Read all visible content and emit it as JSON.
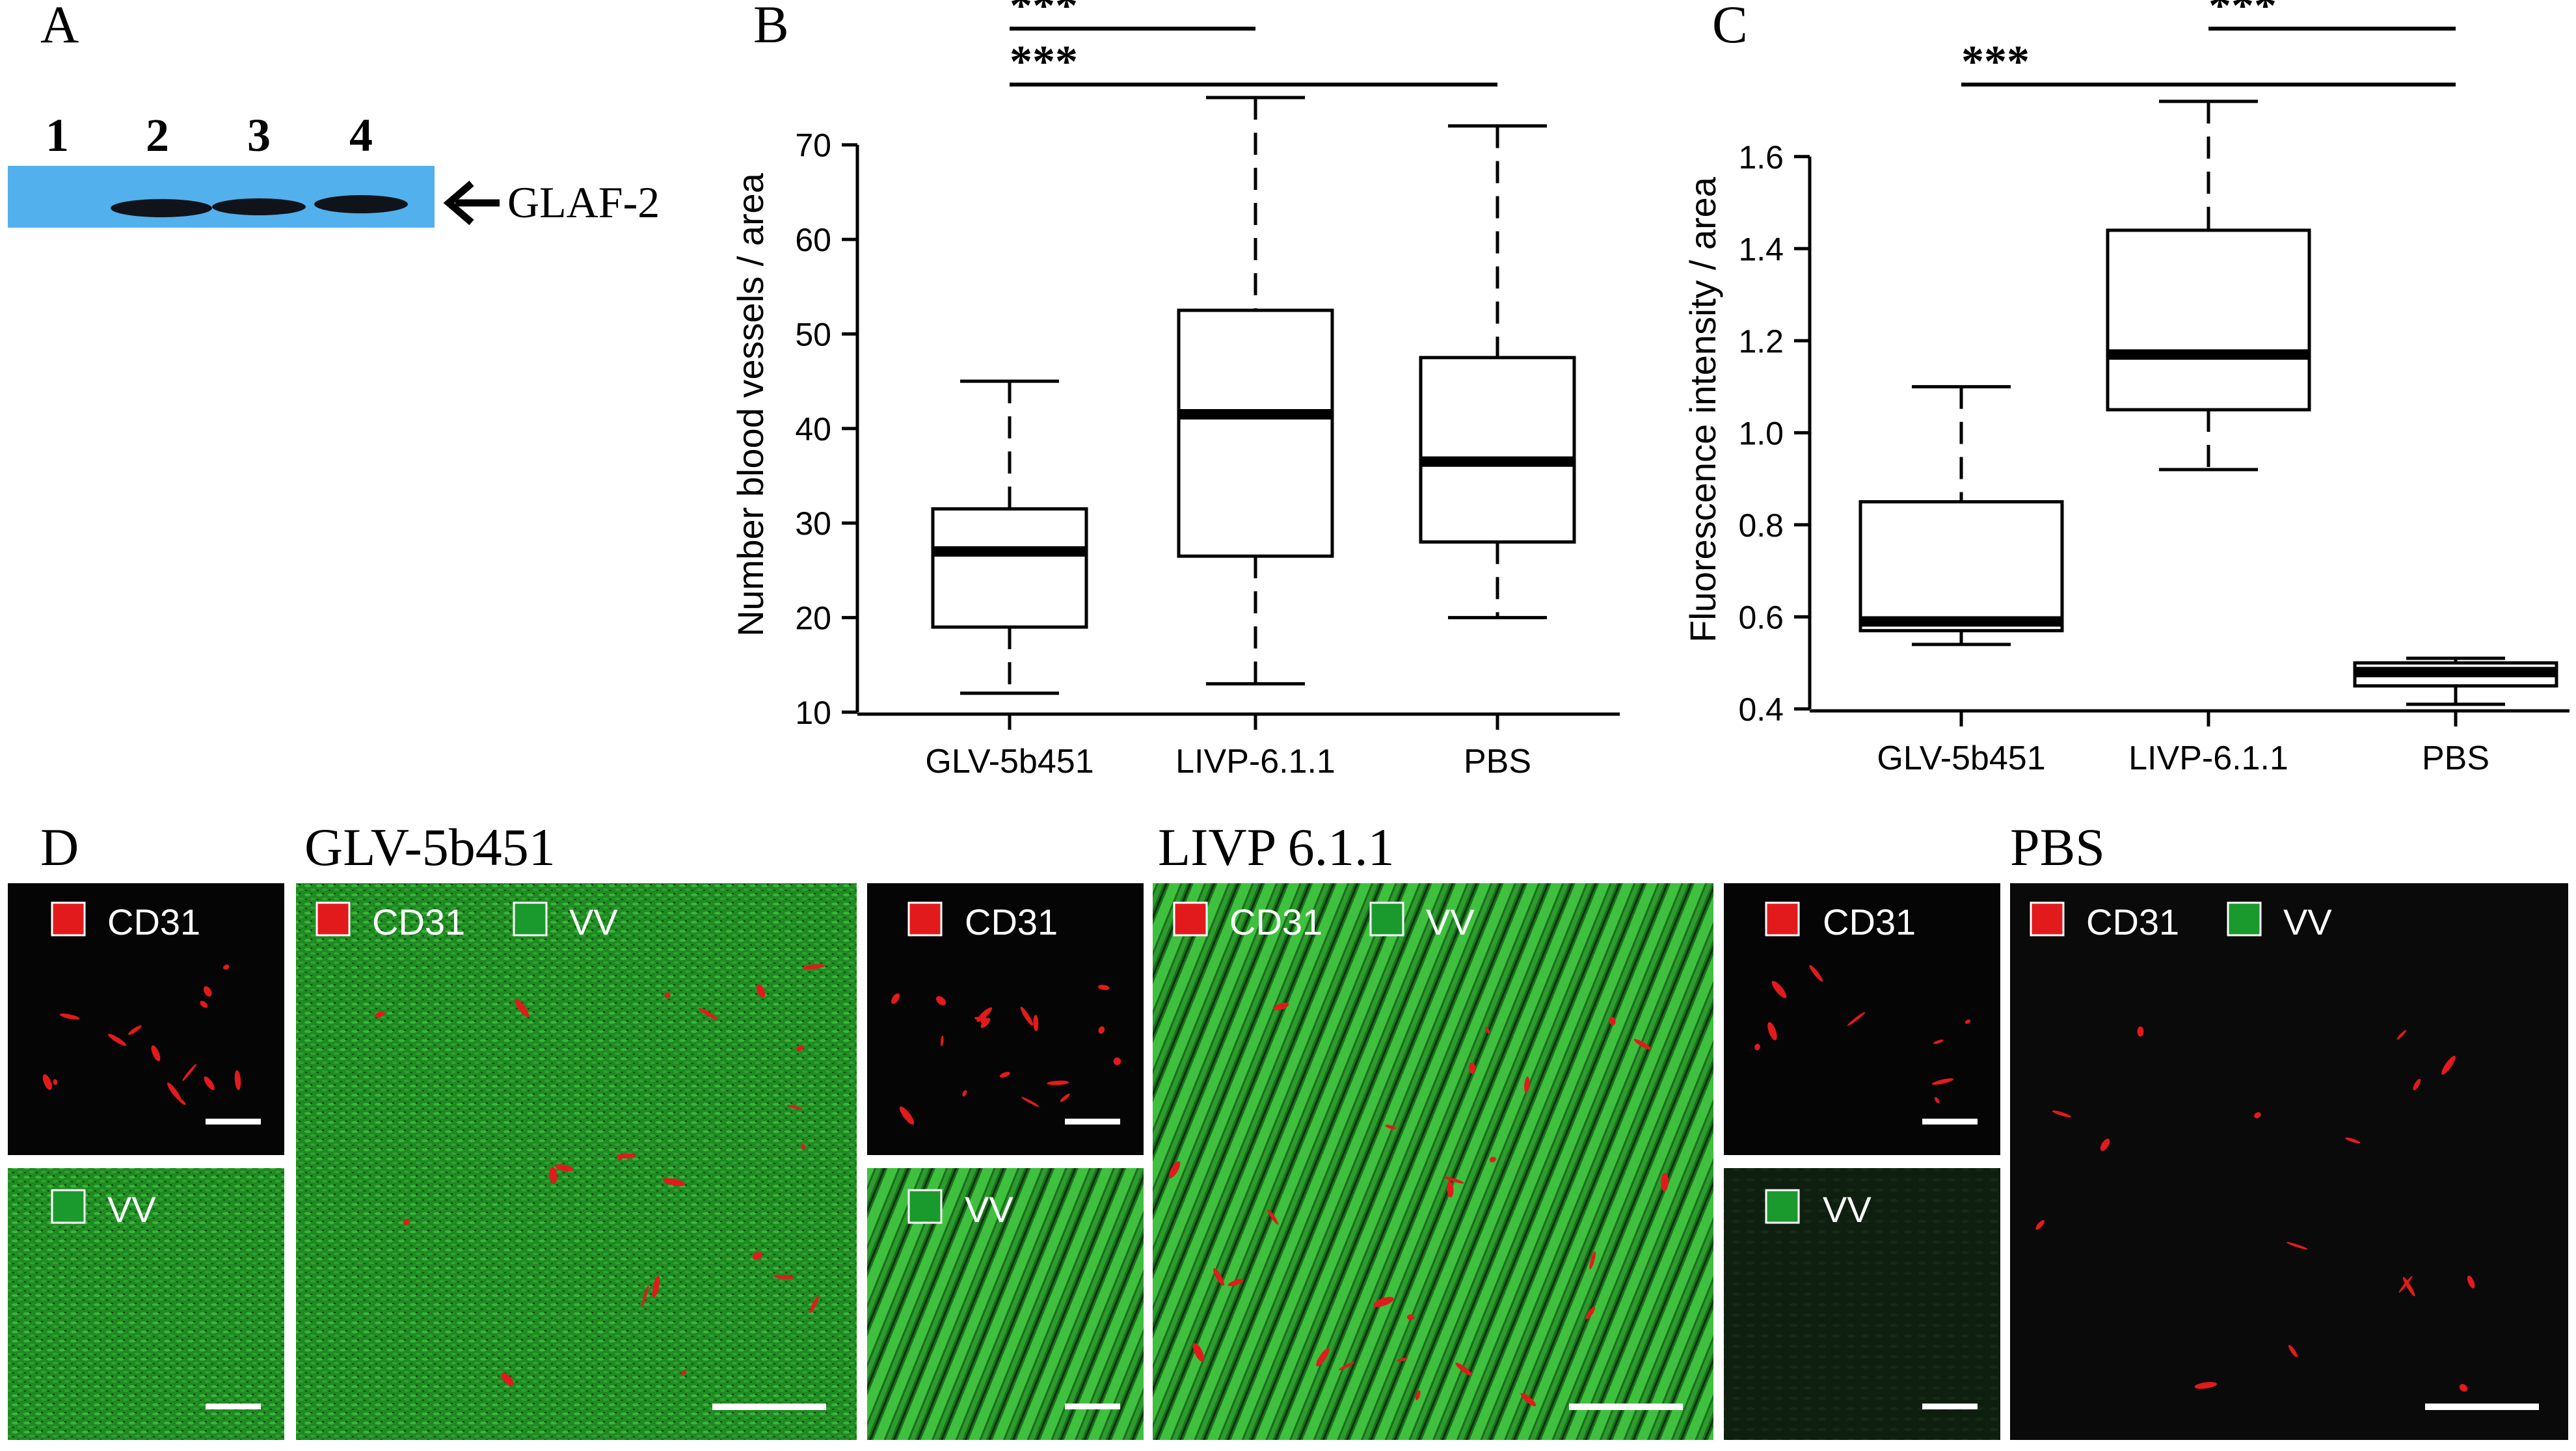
{
  "panels": {
    "A": {
      "letter": "A",
      "lanes": [
        "1",
        "2",
        "3",
        "4"
      ],
      "band_label": "GLAF-2",
      "blot_color": "#52b0ec",
      "band_color": "#10141a"
    },
    "B": {
      "letter": "B"
    },
    "C": {
      "letter": "C"
    },
    "D": {
      "letter": "D",
      "group_titles": [
        "GLV-5b451",
        "LIVP 6.1.1",
        "PBS"
      ],
      "channel_labels": {
        "cd31": "CD31",
        "vv": "VV"
      },
      "cd31_color": "#e31a1c",
      "vv_color": "#1a9a2c"
    }
  },
  "chart_data": [
    {
      "type": "box",
      "panel": "B",
      "categories": [
        "GLV-5b451",
        "LIVP-6.1.1",
        "PBS"
      ],
      "ylabel": "Number blood vessels / area",
      "xlabel": "",
      "ylim": [
        10,
        75
      ],
      "yticks": [
        10,
        20,
        30,
        40,
        50,
        60,
        70
      ],
      "grid": false,
      "boxes": [
        {
          "whisker_low": 12,
          "q1": 19,
          "median": 27,
          "q3": 31.5,
          "whisker_high": 45
        },
        {
          "whisker_low": 13,
          "q1": 26.5,
          "median": 41.5,
          "q3": 52.5,
          "whisker_high": 75
        },
        {
          "whisker_low": 20,
          "q1": 28,
          "median": 36.5,
          "q3": 47.5,
          "whisker_high": 72
        }
      ],
      "significance": [
        {
          "from": "GLV-5b451",
          "to": "LIVP-6.1.1",
          "label": "***"
        },
        {
          "from": "GLV-5b451",
          "to": "PBS",
          "label": "***"
        }
      ]
    },
    {
      "type": "box",
      "panel": "C",
      "categories": [
        "GLV-5b451",
        "LIVP-6.1.1",
        "PBS"
      ],
      "ylabel": "Fluorescence intensity / area",
      "xlabel": "",
      "ylim": [
        0.4,
        1.7
      ],
      "yticks": [
        0.4,
        0.6,
        0.8,
        1.0,
        1.2,
        1.4,
        1.6
      ],
      "grid": false,
      "boxes": [
        {
          "whisker_low": 0.54,
          "q1": 0.57,
          "median": 0.59,
          "q3": 0.85,
          "whisker_high": 1.1
        },
        {
          "whisker_low": 0.92,
          "q1": 1.05,
          "median": 1.17,
          "q3": 1.44,
          "whisker_high": 1.72
        },
        {
          "whisker_low": 0.41,
          "q1": 0.45,
          "median": 0.48,
          "q3": 0.5,
          "whisker_high": 0.51
        }
      ],
      "significance": [
        {
          "from": "LIVP-6.1.1",
          "to": "PBS",
          "label": "***"
        },
        {
          "from": "GLV-5b451",
          "to": "PBS",
          "label": "***"
        }
      ]
    }
  ]
}
